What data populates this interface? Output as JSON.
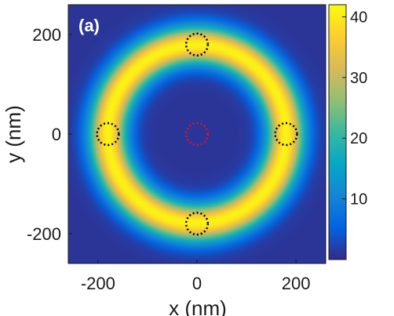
{
  "chart_data": {
    "type": "heatmap",
    "panel_label": "(a)",
    "xlabel": "x (nm)",
    "ylabel": "y (nm)",
    "xlim": [
      -260,
      260
    ],
    "ylim": [
      -260,
      260
    ],
    "x_ticks": [
      -200,
      0,
      200
    ],
    "y_ticks": [
      200,
      0,
      -200
    ],
    "x_tick_labels": [
      "-200",
      "0",
      "200"
    ],
    "y_tick_labels": [
      "200",
      "0",
      "-200"
    ],
    "ring": {
      "center": [
        0,
        0
      ],
      "radius_nm": 180,
      "peak_value": 41,
      "background_value": 1
    },
    "colorbar": {
      "min": 0,
      "max": 42,
      "ticks": [
        10,
        20,
        30,
        40
      ],
      "tick_labels": [
        "10",
        "20",
        "30",
        "40"
      ],
      "colormap": "parula",
      "colors": [
        "#352a87",
        "#0363e1",
        "#1485d4",
        "#06a7c6",
        "#38b99e",
        "#92bf73",
        "#d9ba56",
        "#fcce2e",
        "#f9fb0e"
      ]
    },
    "markers": [
      {
        "type": "dotted-circle",
        "color": "#000000",
        "x": 0,
        "y": 180
      },
      {
        "type": "dotted-circle",
        "color": "#000000",
        "x": -180,
        "y": 0
      },
      {
        "type": "dotted-circle",
        "color": "#000000",
        "x": 180,
        "y": 0
      },
      {
        "type": "dotted-circle",
        "color": "#000000",
        "x": 0,
        "y": -180
      },
      {
        "type": "dotted-circle",
        "color": "#e8101c",
        "x": 0,
        "y": 0
      }
    ],
    "grid": false,
    "legend": "none"
  }
}
